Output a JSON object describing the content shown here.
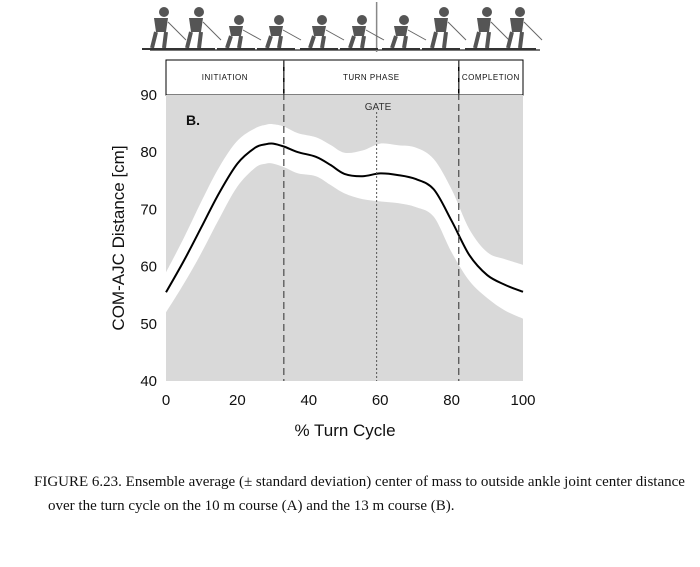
{
  "chart_data": {
    "type": "area",
    "panel_label": "B.",
    "xlabel": "% Turn Cycle",
    "ylabel": "COM-AJC Distance [cm]",
    "xlim": [
      0,
      100
    ],
    "ylim": [
      40,
      90
    ],
    "xticks": [
      "0",
      "20",
      "40",
      "60",
      "80",
      "100"
    ],
    "yticks": [
      "40",
      "50",
      "60",
      "70",
      "80",
      "90"
    ],
    "phases": [
      {
        "label": "INITIATION",
        "start": 0,
        "end": 33
      },
      {
        "label": "TURN PHASE",
        "start": 33,
        "end": 82
      },
      {
        "label": "COMPLETION",
        "start": 82,
        "end": 100
      }
    ],
    "gate": {
      "label": "GATE",
      "x": 59
    },
    "phase_boundaries": [
      33,
      82
    ],
    "series": [
      {
        "x": [
          0,
          5,
          10,
          15,
          20,
          25,
          28,
          30,
          33,
          37,
          42,
          46,
          50,
          55,
          60,
          65,
          70,
          75,
          80,
          85,
          90,
          95,
          100
        ],
        "mean": [
          55.5,
          61,
          67,
          73,
          78,
          80.8,
          81.4,
          81.5,
          81,
          80,
          79.2,
          77.8,
          76.2,
          75.8,
          76.3,
          76,
          75.3,
          73.5,
          68,
          62,
          58.5,
          56.8,
          55.6
        ],
        "upper": [
          59,
          65,
          71.5,
          77.5,
          82,
          84.2,
          84.8,
          84.9,
          84.5,
          83.3,
          82.6,
          81.3,
          79.9,
          80.3,
          81.5,
          81.2,
          80.8,
          78.8,
          73.5,
          66.5,
          62.5,
          61.3,
          60.3
        ],
        "lower": [
          52,
          57,
          62.5,
          68.5,
          74,
          77.3,
          78,
          78,
          77.4,
          76.3,
          75.8,
          74.3,
          72.8,
          71.8,
          71.4,
          71.1,
          70.4,
          68.7,
          62.5,
          57.5,
          54.5,
          52.3,
          50.9
        ]
      }
    ],
    "colors": {
      "background": "#d9d9d9",
      "band": "#ffffff",
      "line": "#000000"
    }
  },
  "caption": "FIGURE 6.23.  Ensemble average (± standard deviation) center of mass to outside ankle joint center distance over the turn cycle on the 10 m course (A) and the 13 m course (B)."
}
